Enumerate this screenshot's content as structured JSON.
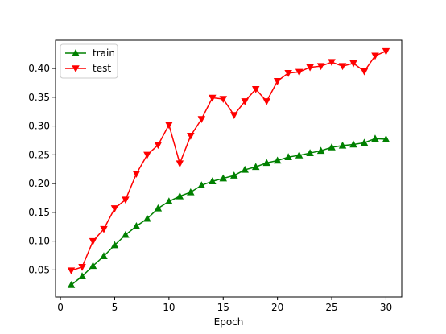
{
  "chart_data": {
    "type": "line",
    "title": "",
    "xlabel": "Epoch",
    "ylabel": "",
    "xlim": [
      -0.45,
      31.45
    ],
    "ylim": [
      0.003,
      0.449
    ],
    "xticks": [
      0,
      5,
      10,
      15,
      20,
      25,
      30
    ],
    "yticks": [
      0.05,
      0.1,
      0.15,
      0.2,
      0.25,
      0.3,
      0.35,
      0.4
    ],
    "ytick_labels": [
      "0.05",
      "0.10",
      "0.15",
      "0.20",
      "0.25",
      "0.30",
      "0.35",
      "0.40"
    ],
    "grid": false,
    "legend_position": "top-left",
    "x": [
      1,
      2,
      3,
      4,
      5,
      6,
      7,
      8,
      9,
      10,
      11,
      12,
      13,
      14,
      15,
      16,
      17,
      18,
      19,
      20,
      21,
      22,
      23,
      24,
      25,
      26,
      27,
      28,
      29,
      30
    ],
    "series": [
      {
        "name": "train",
        "color": "#008000",
        "marker": "triangle-up",
        "values": [
          0.024,
          0.039,
          0.057,
          0.074,
          0.093,
          0.111,
          0.126,
          0.139,
          0.157,
          0.169,
          0.178,
          0.185,
          0.197,
          0.204,
          0.209,
          0.214,
          0.224,
          0.229,
          0.236,
          0.24,
          0.246,
          0.249,
          0.253,
          0.257,
          0.263,
          0.266,
          0.268,
          0.271,
          0.278,
          0.277
        ]
      },
      {
        "name": "test",
        "color": "#ff0000",
        "marker": "triangle-down",
        "values": [
          0.049,
          0.055,
          0.1,
          0.121,
          0.157,
          0.172,
          0.217,
          0.25,
          0.267,
          0.302,
          0.235,
          0.283,
          0.312,
          0.349,
          0.347,
          0.319,
          0.343,
          0.364,
          0.343,
          0.378,
          0.392,
          0.394,
          0.402,
          0.404,
          0.411,
          0.404,
          0.409,
          0.395,
          0.422,
          0.43
        ]
      }
    ]
  }
}
